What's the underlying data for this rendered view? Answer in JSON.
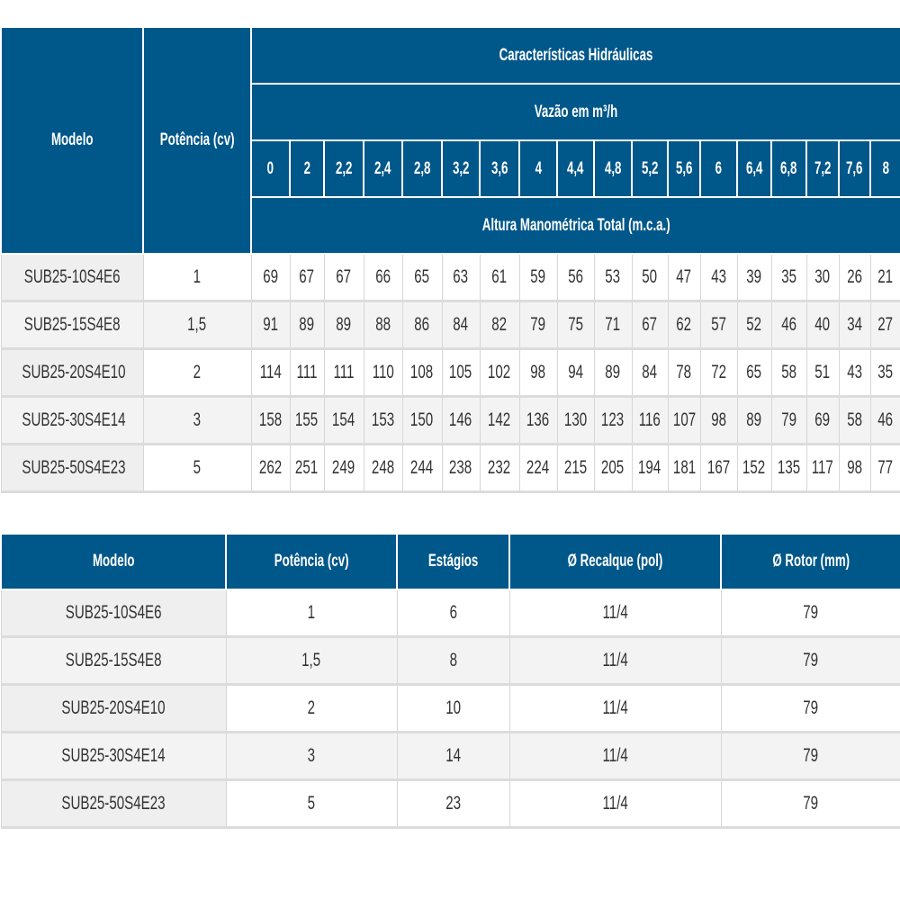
{
  "colors": {
    "header_bg": "#00578a",
    "header_text": "#ffffff",
    "model_cell_bg": "#efefef",
    "stripe_bg": "#f3f3f3"
  },
  "hydraulic_table": {
    "col_model": "Modelo",
    "col_power": "Potência (cv)",
    "group_title": "Características Hidráulicas",
    "flow_title": "Vazão em m³/h",
    "head_title": "Altura Manométrica Total (m.c.a.)",
    "flows": [
      "0",
      "2",
      "2,2",
      "2,4",
      "2,8",
      "3,2",
      "3,6",
      "4",
      "4,4",
      "4,8",
      "5,2",
      "5,6",
      "6",
      "6,4",
      "6,8",
      "7,2",
      "7,6",
      "8"
    ],
    "rows": [
      {
        "model": "SUB25-10S4E6",
        "power": "1",
        "values": [
          "69",
          "67",
          "67",
          "66",
          "65",
          "63",
          "61",
          "59",
          "56",
          "53",
          "50",
          "47",
          "43",
          "39",
          "35",
          "30",
          "26",
          "21"
        ]
      },
      {
        "model": "SUB25-15S4E8",
        "power": "1,5",
        "values": [
          "91",
          "89",
          "89",
          "88",
          "86",
          "84",
          "82",
          "79",
          "75",
          "71",
          "67",
          "62",
          "57",
          "52",
          "46",
          "40",
          "34",
          "27"
        ]
      },
      {
        "model": "SUB25-20S4E10",
        "power": "2",
        "values": [
          "114",
          "111",
          "111",
          "110",
          "108",
          "105",
          "102",
          "98",
          "94",
          "89",
          "84",
          "78",
          "72",
          "65",
          "58",
          "51",
          "43",
          "35"
        ]
      },
      {
        "model": "SUB25-30S4E14",
        "power": "3",
        "values": [
          "158",
          "155",
          "154",
          "153",
          "150",
          "146",
          "142",
          "136",
          "130",
          "123",
          "116",
          "107",
          "98",
          "89",
          "79",
          "69",
          "58",
          "46"
        ]
      },
      {
        "model": "SUB25-50S4E23",
        "power": "5",
        "values": [
          "262",
          "251",
          "249",
          "248",
          "244",
          "238",
          "232",
          "224",
          "215",
          "205",
          "194",
          "181",
          "167",
          "152",
          "135",
          "117",
          "98",
          "77"
        ]
      }
    ]
  },
  "specs_table": {
    "headers": [
      "Modelo",
      "Potência (cv)",
      "Estágios",
      "Ø Recalque (pol)",
      "Ø Rotor (mm)"
    ],
    "rows": [
      [
        "SUB25-10S4E6",
        "1",
        "6",
        "11/4",
        "79"
      ],
      [
        "SUB25-15S4E8",
        "1,5",
        "8",
        "11/4",
        "79"
      ],
      [
        "SUB25-20S4E10",
        "2",
        "10",
        "11/4",
        "79"
      ],
      [
        "SUB25-30S4E14",
        "3",
        "14",
        "11/4",
        "79"
      ],
      [
        "SUB25-50S4E23",
        "5",
        "23",
        "11/4",
        "79"
      ]
    ]
  }
}
